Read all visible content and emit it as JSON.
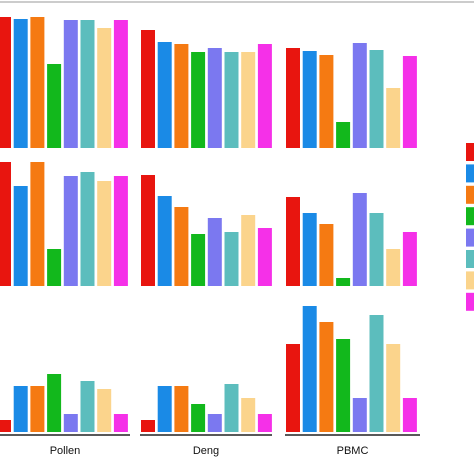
{
  "chart_data": {
    "type": "bar",
    "categories": [
      "Pollen",
      "Deng",
      "PBMC"
    ],
    "colors": [
      "#e8150f",
      "#1a8ae6",
      "#f57a12",
      "#12b81c",
      "#7b78f0",
      "#5cbdbd",
      "#fbd48c",
      "#f530e8"
    ],
    "ylim": [
      0,
      140
    ],
    "rows": [
      [
        [
          131,
          129,
          131,
          84,
          128,
          128,
          120,
          128
        ],
        [
          118,
          106,
          104,
          96,
          100,
          96,
          96,
          104
        ],
        [
          100,
          97,
          93,
          26,
          105,
          98,
          60,
          92
        ]
      ],
      [
        [
          124,
          100,
          124,
          37,
          110,
          114,
          105,
          110
        ],
        [
          111,
          90,
          79,
          52,
          68,
          54,
          71,
          58
        ],
        [
          89,
          73,
          62,
          8,
          93,
          73,
          37,
          54
        ]
      ],
      [
        [
          12,
          46,
          46,
          58,
          18,
          51,
          43,
          18
        ],
        [
          12,
          46,
          46,
          28,
          18,
          48,
          34,
          18
        ],
        [
          88,
          126,
          110,
          93,
          34,
          117,
          88,
          34
        ]
      ]
    ]
  }
}
